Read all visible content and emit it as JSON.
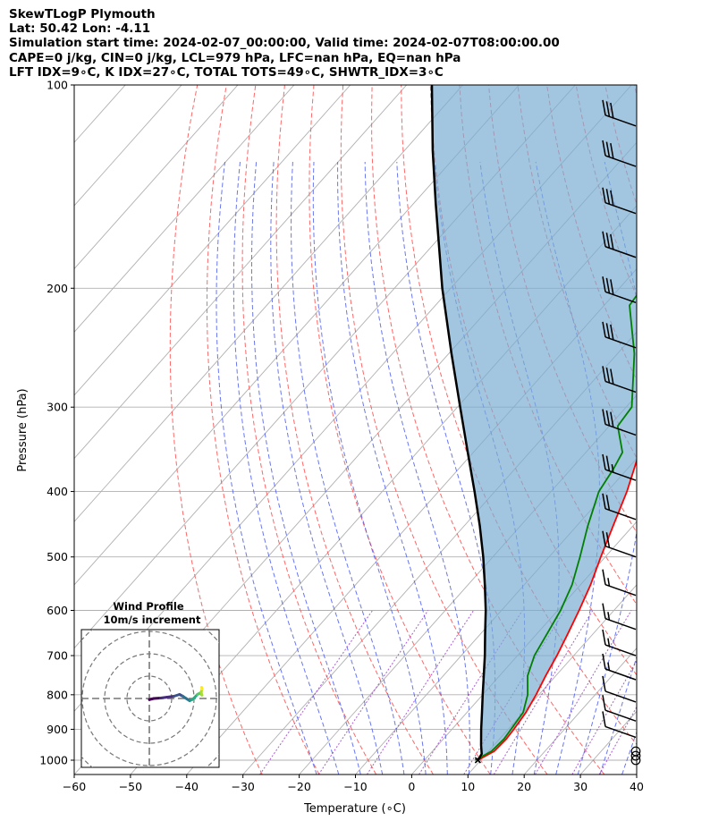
{
  "header": {
    "line1": "SkewTLogP Plymouth",
    "line2": "Lat: 50.42   Lon: -4.11",
    "line3": "Simulation start time: 2024-02-07_00:00:00, Valid time: 2024-02-07T08:00:00.00",
    "line4": "CAPE=0 j/kg, CIN=0 j/kg, LCL=979 hPa, LFC=nan hPa, EQ=nan hPa",
    "line5": "LFT IDX=9∘C, K IDX=27∘C, TOTAL TOTS=49∘C, SHWTR_IDX=3∘C"
  },
  "chart_data": {
    "type": "line",
    "subtype": "skew-t log-p",
    "xlabel": "Temperature (∘C)",
    "ylabel": "Pressure (hPa)",
    "xlim": [
      -60,
      40
    ],
    "ylim": [
      1050,
      100
    ],
    "yscale": "log",
    "xticks": [
      -60,
      -50,
      -40,
      -30,
      -20,
      -10,
      0,
      10,
      20,
      30,
      40
    ],
    "yticks": [
      100,
      200,
      300,
      400,
      500,
      600,
      700,
      800,
      900,
      1000
    ],
    "grid": true,
    "series": [
      {
        "key": "temperature",
        "color": "#ff0000",
        "points": [
          [
            1000,
            9.5
          ],
          [
            970,
            11.0
          ],
          [
            930,
            11.2
          ],
          [
            900,
            11.0
          ],
          [
            850,
            10.5
          ],
          [
            800,
            9.5
          ],
          [
            750,
            8.2
          ],
          [
            700,
            7.0
          ],
          [
            650,
            5.5
          ],
          [
            600,
            3.8
          ],
          [
            550,
            1.8
          ],
          [
            500,
            -0.8
          ],
          [
            450,
            -3.5
          ],
          [
            400,
            -6.5
          ],
          [
            350,
            -10.5
          ],
          [
            300,
            -16.0
          ],
          [
            250,
            -23.0
          ],
          [
            220,
            -28.5
          ],
          [
            212,
            -30.5
          ],
          [
            200,
            -30.0
          ],
          [
            180,
            -29.5
          ],
          [
            160,
            -27.5
          ],
          [
            140,
            -25.0
          ],
          [
            125,
            -23.0
          ],
          [
            110,
            -23.0
          ],
          [
            100,
            -23.5
          ]
        ]
      },
      {
        "key": "dewpoint",
        "color": "#008000",
        "points": [
          [
            1000,
            9.0
          ],
          [
            970,
            10.5
          ],
          [
            930,
            10.8
          ],
          [
            900,
            10.5
          ],
          [
            850,
            10.0
          ],
          [
            800,
            8.0
          ],
          [
            750,
            5.0
          ],
          [
            700,
            3.0
          ],
          [
            650,
            1.8
          ],
          [
            600,
            0.5
          ],
          [
            550,
            -1.5
          ],
          [
            500,
            -4.5
          ],
          [
            450,
            -8.0
          ],
          [
            400,
            -11.5
          ],
          [
            370,
            -12.5
          ],
          [
            350,
            -13.5
          ],
          [
            320,
            -18.5
          ],
          [
            300,
            -19.0
          ],
          [
            250,
            -27.0
          ],
          [
            212,
            -35.5
          ],
          [
            200,
            -36.0
          ],
          [
            185,
            -36.5
          ],
          [
            170,
            -35.0
          ],
          [
            150,
            -35.5
          ],
          [
            138,
            -43.0
          ],
          [
            120,
            -43.5
          ],
          [
            100,
            -45.5
          ]
        ]
      },
      {
        "key": "parcel",
        "color": "#000000",
        "points": [
          [
            1000,
            9.5
          ],
          [
            979,
            9.2
          ],
          [
            950,
            7.7
          ],
          [
            900,
            5.2
          ],
          [
            850,
            2.7
          ],
          [
            800,
            0.0
          ],
          [
            750,
            -2.8
          ],
          [
            700,
            -5.8
          ],
          [
            650,
            -9.2
          ],
          [
            600,
            -12.8
          ],
          [
            550,
            -17.0
          ],
          [
            500,
            -21.7
          ],
          [
            450,
            -27.2
          ],
          [
            400,
            -33.6
          ],
          [
            350,
            -41.0
          ],
          [
            300,
            -49.5
          ],
          [
            250,
            -59.5
          ],
          [
            200,
            -71.5
          ],
          [
            150,
            -86.0
          ],
          [
            125,
            -95.0
          ],
          [
            100,
            -105.5
          ]
        ]
      }
    ],
    "wind_barbs": [
      {
        "p": 1000,
        "barbs": 0,
        "calm": true
      },
      {
        "p": 985,
        "barbs": 0,
        "calm": true
      },
      {
        "p": 970,
        "barbs": 0,
        "calm": true
      },
      {
        "p": 925,
        "barbs": 1
      },
      {
        "p": 875,
        "barbs": 1
      },
      {
        "p": 820,
        "barbs": 1
      },
      {
        "p": 760,
        "barbs": 1.5
      },
      {
        "p": 700,
        "barbs": 1.5
      },
      {
        "p": 640,
        "barbs": 1.5
      },
      {
        "p": 570,
        "barbs": 1.5
      },
      {
        "p": 500,
        "barbs": 2
      },
      {
        "p": 440,
        "barbs": 2
      },
      {
        "p": 385,
        "barbs": 2.5
      },
      {
        "p": 330,
        "barbs": 3
      },
      {
        "p": 285,
        "barbs": 3
      },
      {
        "p": 245,
        "barbs": 3
      },
      {
        "p": 210,
        "barbs": 3
      },
      {
        "p": 180,
        "barbs": 3
      },
      {
        "p": 155,
        "barbs": 3
      },
      {
        "p": 132,
        "barbs": 3
      },
      {
        "p": 115,
        "barbs": 3
      }
    ],
    "hodograph": {
      "title_line1": "Wind Profile",
      "title_line2": "10m/s increment",
      "colormap": "viridis",
      "points": [
        [
          0.0,
          0.5
        ],
        [
          2.0,
          0.0
        ],
        [
          5.0,
          -0.2
        ],
        [
          8.0,
          -0.6
        ],
        [
          11.0,
          -1.0
        ],
        [
          13.5,
          -1.8
        ],
        [
          15.0,
          -1.0
        ],
        [
          16.5,
          0.0
        ],
        [
          18.0,
          1.0
        ],
        [
          19.0,
          0.6
        ],
        [
          20.0,
          -0.2
        ],
        [
          21.5,
          -1.8
        ],
        [
          22.8,
          -2.5
        ],
        [
          23.5,
          -1.5
        ],
        [
          23.2,
          -2.8
        ],
        [
          23.6,
          -4.2
        ],
        [
          23.4,
          -5.0
        ]
      ]
    }
  }
}
